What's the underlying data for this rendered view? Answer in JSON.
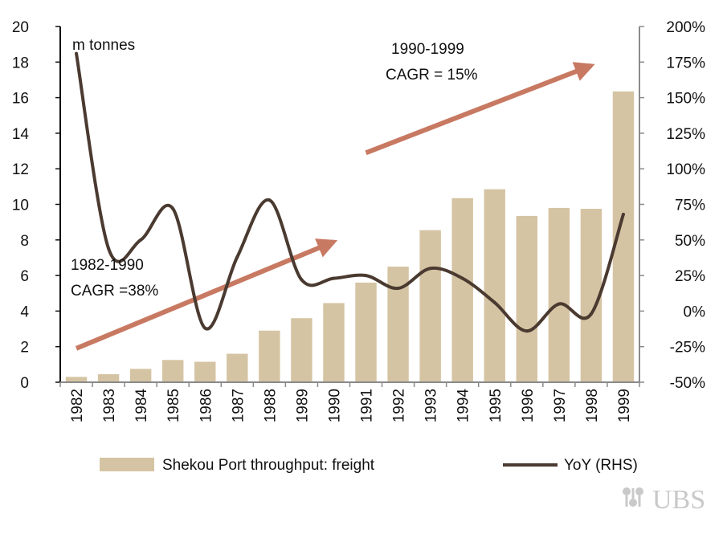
{
  "chart_data": {
    "type": "bar+line",
    "categories": [
      "1982",
      "1983",
      "1984",
      "1985",
      "1986",
      "1987",
      "1988",
      "1989",
      "1990",
      "1991",
      "1992",
      "1993",
      "1994",
      "1995",
      "1996",
      "1997",
      "1998",
      "1999"
    ],
    "series": [
      {
        "name": "Shekou Port throughput: freight",
        "type": "bar",
        "axis": "left",
        "values": [
          0.3,
          0.45,
          0.75,
          1.25,
          1.15,
          1.6,
          2.9,
          3.6,
          4.45,
          5.6,
          6.5,
          8.55,
          10.35,
          10.85,
          9.35,
          9.8,
          9.75,
          16.35
        ]
      },
      {
        "name": "YoY (RHS)",
        "type": "line",
        "axis": "right",
        "values": [
          181,
          44,
          50,
          72,
          -12,
          38,
          78,
          22,
          23,
          25,
          16,
          30,
          23,
          6,
          -14,
          5,
          -2,
          68
        ]
      }
    ],
    "y_left": {
      "unit_label": "m tonnes",
      "ylim": [
        0,
        20
      ],
      "ticks": [
        "0",
        "2",
        "4",
        "6",
        "8",
        "10",
        "12",
        "14",
        "16",
        "18",
        "20"
      ]
    },
    "y_right": {
      "ylim": [
        -50,
        200
      ],
      "ticks": [
        "-50%",
        "-25%",
        "0%",
        "25%",
        "50%",
        "75%",
        "100%",
        "125%",
        "150%",
        "175%",
        "200%"
      ]
    },
    "annotations": [
      {
        "lines": [
          "1982-1990",
          "CAGR =38%"
        ]
      },
      {
        "lines": [
          "1990-1999",
          "CAGR = 15%"
        ]
      }
    ],
    "arrows": [
      {
        "from": [
          "1982",
          1.9
        ],
        "to": [
          "1990",
          7.9
        ]
      },
      {
        "from": [
          "1991",
          12.9
        ],
        "to": [
          "1998",
          17.8
        ]
      }
    ],
    "colors": {
      "bar": "#d5c4a3",
      "line": "#4a3a30",
      "arrow": "#c87962",
      "axis": "#8a8a8a"
    },
    "legend_position": "bottom",
    "grid": false
  },
  "logo": {
    "text": "UBS",
    "icon": "ubs-keys-icon"
  }
}
